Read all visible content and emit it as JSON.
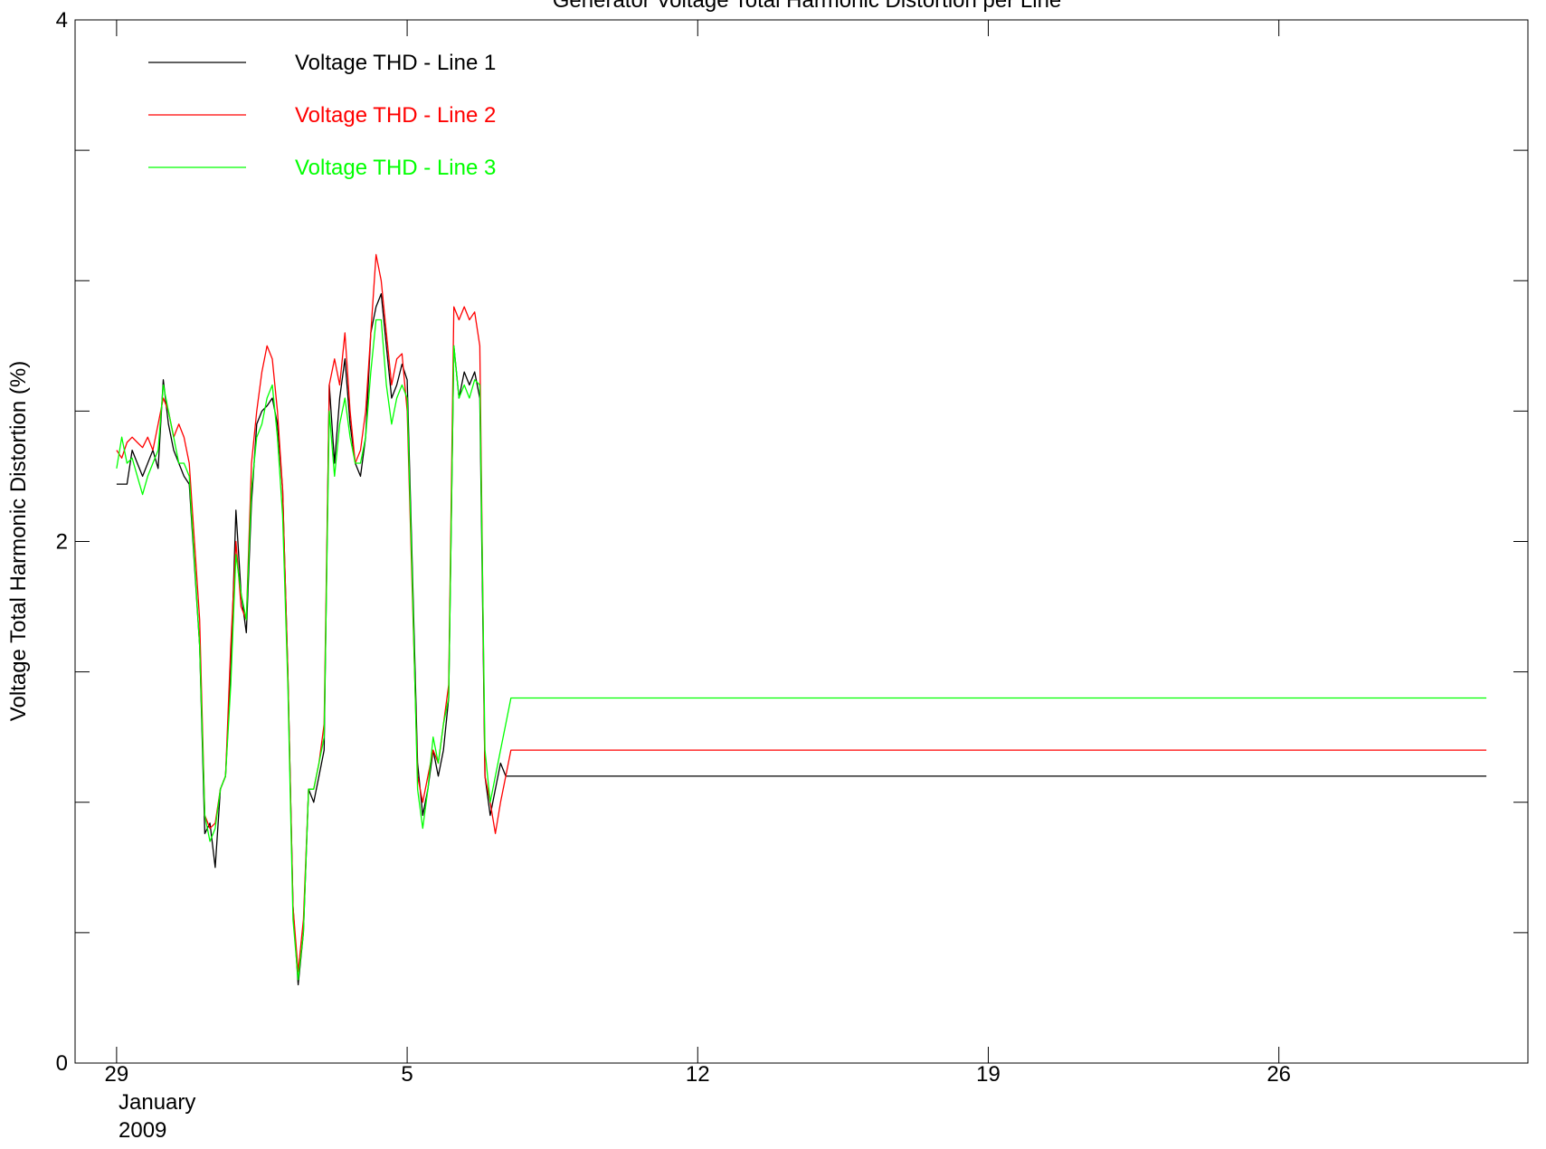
{
  "chart_data": {
    "type": "line",
    "title": "Generator Voltage Total Harmonic Distortion per Line",
    "xlabel": "",
    "ylabel": "Voltage Total Harmonic Distortion (%)",
    "x_axis_type": "date",
    "xlim": [
      "2008-12-28",
      "2009-02-01"
    ],
    "ylim": [
      0,
      4
    ],
    "yticks": [
      0,
      2,
      4
    ],
    "y_minor_step": 0.5,
    "x_ticks": [
      {
        "x": "2008-12-28",
        "label": "29",
        "label_at": "2008-12-29"
      },
      {
        "x": "2009-01-05",
        "label": "5"
      },
      {
        "x": "2009-01-12",
        "label": "12"
      },
      {
        "x": "2009-01-19",
        "label": "19"
      },
      {
        "x": "2009-01-26",
        "label": "26"
      }
    ],
    "x_axis_caption": [
      "January",
      "2009"
    ],
    "grid": false,
    "legend": "top-left",
    "series": [
      {
        "name": "Voltage THD - Line 1",
        "color": "#000000",
        "points": [
          [
            "2008-12-29 00:00",
            2.22
          ],
          [
            "2008-12-29 03:00",
            2.22
          ],
          [
            "2008-12-29 06:00",
            2.22
          ],
          [
            "2008-12-29 09:00",
            2.35
          ],
          [
            "2008-12-29 12:00",
            2.3
          ],
          [
            "2008-12-29 15:00",
            2.25
          ],
          [
            "2008-12-29 18:00",
            2.3
          ],
          [
            "2008-12-29 21:00",
            2.35
          ],
          [
            "2008-12-30 00:00",
            2.28
          ],
          [
            "2008-12-30 03:00",
            2.62
          ],
          [
            "2008-12-30 06:00",
            2.45
          ],
          [
            "2008-12-30 09:00",
            2.35
          ],
          [
            "2008-12-30 12:00",
            2.3
          ],
          [
            "2008-12-30 15:00",
            2.25
          ],
          [
            "2008-12-30 18:00",
            2.22
          ],
          [
            "2008-12-31 00:00",
            1.6
          ],
          [
            "2008-12-31 03:00",
            0.88
          ],
          [
            "2008-12-31 06:00",
            0.92
          ],
          [
            "2008-12-31 09:00",
            0.75
          ],
          [
            "2008-12-31 12:00",
            1.05
          ],
          [
            "2008-12-31 15:00",
            1.1
          ],
          [
            "2008-12-31 18:00",
            1.5
          ],
          [
            "2008-12-31 21:00",
            2.12
          ],
          [
            "2009-01-01 00:00",
            1.8
          ],
          [
            "2009-01-01 03:00",
            1.65
          ],
          [
            "2009-01-01 06:00",
            2.15
          ],
          [
            "2009-01-01 09:00",
            2.45
          ],
          [
            "2009-01-01 12:00",
            2.5
          ],
          [
            "2009-01-01 15:00",
            2.52
          ],
          [
            "2009-01-01 18:00",
            2.55
          ],
          [
            "2009-01-01 21:00",
            2.45
          ],
          [
            "2009-01-02 00:00",
            2.2
          ],
          [
            "2009-01-02 03:00",
            1.5
          ],
          [
            "2009-01-02 06:00",
            0.6
          ],
          [
            "2009-01-02 09:00",
            0.3
          ],
          [
            "2009-01-02 12:00",
            0.5
          ],
          [
            "2009-01-02 15:00",
            1.05
          ],
          [
            "2009-01-02 18:00",
            1.0
          ],
          [
            "2009-01-02 21:00",
            1.1
          ],
          [
            "2009-01-03 00:00",
            1.2
          ],
          [
            "2009-01-03 03:00",
            2.6
          ],
          [
            "2009-01-03 06:00",
            2.3
          ],
          [
            "2009-01-03 09:00",
            2.55
          ],
          [
            "2009-01-03 12:00",
            2.7
          ],
          [
            "2009-01-03 15:00",
            2.45
          ],
          [
            "2009-01-03 18:00",
            2.3
          ],
          [
            "2009-01-03 21:00",
            2.25
          ],
          [
            "2009-01-04 00:00",
            2.4
          ],
          [
            "2009-01-04 03:00",
            2.8
          ],
          [
            "2009-01-04 06:00",
            2.9
          ],
          [
            "2009-01-04 09:00",
            2.95
          ],
          [
            "2009-01-04 12:00",
            2.75
          ],
          [
            "2009-01-04 15:00",
            2.55
          ],
          [
            "2009-01-04 18:00",
            2.6
          ],
          [
            "2009-01-04 21:00",
            2.68
          ],
          [
            "2009-01-05 00:00",
            2.62
          ],
          [
            "2009-01-05 03:00",
            1.9
          ],
          [
            "2009-01-05 06:00",
            1.15
          ],
          [
            "2009-01-05 09:00",
            0.95
          ],
          [
            "2009-01-05 12:00",
            1.05
          ],
          [
            "2009-01-05 15:00",
            1.2
          ],
          [
            "2009-01-05 18:00",
            1.1
          ],
          [
            "2009-01-05 21:00",
            1.2
          ],
          [
            "2009-01-06 00:00",
            1.4
          ],
          [
            "2009-01-06 03:00",
            2.75
          ],
          [
            "2009-01-06 06:00",
            2.55
          ],
          [
            "2009-01-06 09:00",
            2.65
          ],
          [
            "2009-01-06 12:00",
            2.6
          ],
          [
            "2009-01-06 15:00",
            2.65
          ],
          [
            "2009-01-06 18:00",
            2.55
          ],
          [
            "2009-01-06 21:00",
            1.1
          ],
          [
            "2009-01-07 00:00",
            0.95
          ],
          [
            "2009-01-07 03:00",
            1.05
          ],
          [
            "2009-01-07 06:00",
            1.15
          ],
          [
            "2009-01-07 09:00",
            1.1
          ],
          [
            "2009-01-07 12:00",
            1.1
          ],
          [
            "2009-01-31 00:00",
            1.1
          ]
        ]
      },
      {
        "name": "Voltage THD - Line 2",
        "color": "#ff0000",
        "points": [
          [
            "2008-12-29 00:00",
            2.35
          ],
          [
            "2008-12-29 03:00",
            2.32
          ],
          [
            "2008-12-29 06:00",
            2.38
          ],
          [
            "2008-12-29 09:00",
            2.4
          ],
          [
            "2008-12-29 12:00",
            2.38
          ],
          [
            "2008-12-29 15:00",
            2.36
          ],
          [
            "2008-12-29 18:00",
            2.4
          ],
          [
            "2008-12-29 21:00",
            2.35
          ],
          [
            "2008-12-30 00:00",
            2.45
          ],
          [
            "2008-12-30 03:00",
            2.55
          ],
          [
            "2008-12-30 06:00",
            2.5
          ],
          [
            "2008-12-30 09:00",
            2.4
          ],
          [
            "2008-12-30 12:00",
            2.45
          ],
          [
            "2008-12-30 15:00",
            2.4
          ],
          [
            "2008-12-30 18:00",
            2.3
          ],
          [
            "2008-12-31 00:00",
            1.7
          ],
          [
            "2008-12-31 03:00",
            0.95
          ],
          [
            "2008-12-31 06:00",
            0.9
          ],
          [
            "2008-12-31 09:00",
            0.92
          ],
          [
            "2008-12-31 12:00",
            1.05
          ],
          [
            "2008-12-31 15:00",
            1.1
          ],
          [
            "2008-12-31 18:00",
            1.6
          ],
          [
            "2008-12-31 21:00",
            2.0
          ],
          [
            "2009-01-01 00:00",
            1.75
          ],
          [
            "2009-01-01 03:00",
            1.7
          ],
          [
            "2009-01-01 06:00",
            2.3
          ],
          [
            "2009-01-01 09:00",
            2.5
          ],
          [
            "2009-01-01 12:00",
            2.65
          ],
          [
            "2009-01-01 15:00",
            2.75
          ],
          [
            "2009-01-01 18:00",
            2.7
          ],
          [
            "2009-01-01 21:00",
            2.5
          ],
          [
            "2009-01-02 00:00",
            2.2
          ],
          [
            "2009-01-02 03:00",
            1.5
          ],
          [
            "2009-01-02 06:00",
            0.6
          ],
          [
            "2009-01-02 09:00",
            0.35
          ],
          [
            "2009-01-02 12:00",
            0.55
          ],
          [
            "2009-01-02 15:00",
            1.05
          ],
          [
            "2009-01-02 18:00",
            1.05
          ],
          [
            "2009-01-02 21:00",
            1.15
          ],
          [
            "2009-01-03 00:00",
            1.3
          ],
          [
            "2009-01-03 03:00",
            2.6
          ],
          [
            "2009-01-03 06:00",
            2.7
          ],
          [
            "2009-01-03 09:00",
            2.6
          ],
          [
            "2009-01-03 12:00",
            2.8
          ],
          [
            "2009-01-03 15:00",
            2.5
          ],
          [
            "2009-01-03 18:00",
            2.3
          ],
          [
            "2009-01-03 21:00",
            2.35
          ],
          [
            "2009-01-04 00:00",
            2.5
          ],
          [
            "2009-01-04 03:00",
            2.8
          ],
          [
            "2009-01-04 06:00",
            3.1
          ],
          [
            "2009-01-04 09:00",
            3.0
          ],
          [
            "2009-01-04 12:00",
            2.8
          ],
          [
            "2009-01-04 15:00",
            2.6
          ],
          [
            "2009-01-04 18:00",
            2.7
          ],
          [
            "2009-01-04 21:00",
            2.72
          ],
          [
            "2009-01-05 00:00",
            2.5
          ],
          [
            "2009-01-05 03:00",
            1.8
          ],
          [
            "2009-01-05 06:00",
            1.1
          ],
          [
            "2009-01-05 09:00",
            1.0
          ],
          [
            "2009-01-05 12:00",
            1.1
          ],
          [
            "2009-01-05 15:00",
            1.2
          ],
          [
            "2009-01-05 18:00",
            1.15
          ],
          [
            "2009-01-05 21:00",
            1.3
          ],
          [
            "2009-01-06 00:00",
            1.45
          ],
          [
            "2009-01-06 03:00",
            2.9
          ],
          [
            "2009-01-06 06:00",
            2.85
          ],
          [
            "2009-01-06 09:00",
            2.9
          ],
          [
            "2009-01-06 12:00",
            2.85
          ],
          [
            "2009-01-06 15:00",
            2.88
          ],
          [
            "2009-01-06 18:00",
            2.75
          ],
          [
            "2009-01-06 21:00",
            1.1
          ],
          [
            "2009-01-07 00:00",
            1.0
          ],
          [
            "2009-01-07 03:00",
            0.88
          ],
          [
            "2009-01-07 06:00",
            1.0
          ],
          [
            "2009-01-07 09:00",
            1.1
          ],
          [
            "2009-01-07 12:00",
            1.2
          ],
          [
            "2009-01-31 00:00",
            1.2
          ]
        ]
      },
      {
        "name": "Voltage THD - Line 3",
        "color": "#00ff00",
        "points": [
          [
            "2008-12-29 00:00",
            2.28
          ],
          [
            "2008-12-29 03:00",
            2.4
          ],
          [
            "2008-12-29 06:00",
            2.3
          ],
          [
            "2008-12-29 09:00",
            2.32
          ],
          [
            "2008-12-29 12:00",
            2.25
          ],
          [
            "2008-12-29 15:00",
            2.18
          ],
          [
            "2008-12-29 18:00",
            2.25
          ],
          [
            "2008-12-29 21:00",
            2.3
          ],
          [
            "2008-12-30 00:00",
            2.35
          ],
          [
            "2008-12-30 03:00",
            2.6
          ],
          [
            "2008-12-30 06:00",
            2.5
          ],
          [
            "2008-12-30 09:00",
            2.4
          ],
          [
            "2008-12-30 12:00",
            2.3
          ],
          [
            "2008-12-30 15:00",
            2.3
          ],
          [
            "2008-12-30 18:00",
            2.25
          ],
          [
            "2008-12-31 00:00",
            1.6
          ],
          [
            "2008-12-31 03:00",
            0.95
          ],
          [
            "2008-12-31 06:00",
            0.85
          ],
          [
            "2008-12-31 09:00",
            0.9
          ],
          [
            "2008-12-31 12:00",
            1.05
          ],
          [
            "2008-12-31 15:00",
            1.1
          ],
          [
            "2008-12-31 18:00",
            1.45
          ],
          [
            "2008-12-31 21:00",
            1.95
          ],
          [
            "2009-01-01 00:00",
            1.8
          ],
          [
            "2009-01-01 03:00",
            1.7
          ],
          [
            "2009-01-01 06:00",
            2.2
          ],
          [
            "2009-01-01 09:00",
            2.4
          ],
          [
            "2009-01-01 12:00",
            2.45
          ],
          [
            "2009-01-01 15:00",
            2.55
          ],
          [
            "2009-01-01 18:00",
            2.6
          ],
          [
            "2009-01-01 21:00",
            2.4
          ],
          [
            "2009-01-02 00:00",
            2.1
          ],
          [
            "2009-01-02 03:00",
            1.45
          ],
          [
            "2009-01-02 06:00",
            0.55
          ],
          [
            "2009-01-02 09:00",
            0.32
          ],
          [
            "2009-01-02 12:00",
            0.5
          ],
          [
            "2009-01-02 15:00",
            1.05
          ],
          [
            "2009-01-02 18:00",
            1.05
          ],
          [
            "2009-01-02 21:00",
            1.15
          ],
          [
            "2009-01-03 00:00",
            1.25
          ],
          [
            "2009-01-03 03:00",
            2.5
          ],
          [
            "2009-01-03 06:00",
            2.25
          ],
          [
            "2009-01-03 09:00",
            2.45
          ],
          [
            "2009-01-03 12:00",
            2.55
          ],
          [
            "2009-01-03 15:00",
            2.4
          ],
          [
            "2009-01-03 18:00",
            2.3
          ],
          [
            "2009-01-03 21:00",
            2.3
          ],
          [
            "2009-01-04 00:00",
            2.4
          ],
          [
            "2009-01-04 03:00",
            2.65
          ],
          [
            "2009-01-04 06:00",
            2.85
          ],
          [
            "2009-01-04 09:00",
            2.85
          ],
          [
            "2009-01-04 12:00",
            2.6
          ],
          [
            "2009-01-04 15:00",
            2.45
          ],
          [
            "2009-01-04 18:00",
            2.55
          ],
          [
            "2009-01-04 21:00",
            2.6
          ],
          [
            "2009-01-05 00:00",
            2.55
          ],
          [
            "2009-01-05 03:00",
            1.85
          ],
          [
            "2009-01-05 06:00",
            1.05
          ],
          [
            "2009-01-05 09:00",
            0.9
          ],
          [
            "2009-01-05 12:00",
            1.05
          ],
          [
            "2009-01-05 15:00",
            1.25
          ],
          [
            "2009-01-05 18:00",
            1.15
          ],
          [
            "2009-01-05 21:00",
            1.3
          ],
          [
            "2009-01-06 00:00",
            1.4
          ],
          [
            "2009-01-06 03:00",
            2.75
          ],
          [
            "2009-01-06 06:00",
            2.55
          ],
          [
            "2009-01-06 09:00",
            2.6
          ],
          [
            "2009-01-06 12:00",
            2.55
          ],
          [
            "2009-01-06 15:00",
            2.62
          ],
          [
            "2009-01-06 18:00",
            2.6
          ],
          [
            "2009-01-06 21:00",
            1.2
          ],
          [
            "2009-01-07 00:00",
            1.0
          ],
          [
            "2009-01-07 03:00",
            1.1
          ],
          [
            "2009-01-07 06:00",
            1.2
          ],
          [
            "2009-01-07 09:00",
            1.3
          ],
          [
            "2009-01-07 12:00",
            1.4
          ],
          [
            "2009-01-31 00:00",
            1.4
          ]
        ]
      }
    ]
  }
}
